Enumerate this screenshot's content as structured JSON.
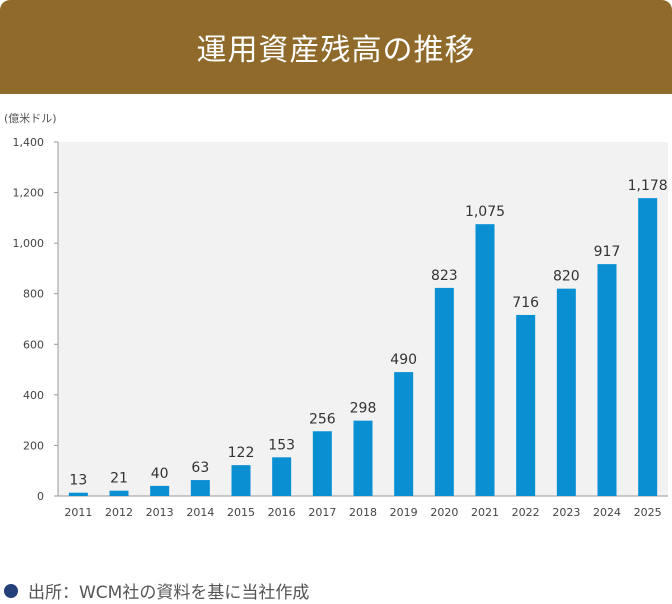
{
  "header": {
    "title": "運用資産残高の推移"
  },
  "colors": {
    "header_bg": "#8F6A2A",
    "bar": "#0A8FD3",
    "plot_bg": "#F2F2F2",
    "dot": "#24417A"
  },
  "chart_data": {
    "type": "bar",
    "ylabel": "(億米ドル)",
    "categories": [
      "2011",
      "2012",
      "2013",
      "2014",
      "2015",
      "2016",
      "2017",
      "2018",
      "2019",
      "2020",
      "2021",
      "2022",
      "2023",
      "2024",
      "2025"
    ],
    "values": [
      13,
      21,
      40,
      63,
      122,
      153,
      256,
      298,
      490,
      823,
      1075,
      716,
      820,
      917,
      1178
    ],
    "data_labels": [
      "13",
      "21",
      "40",
      "63",
      "122",
      "153",
      "256",
      "298",
      "490",
      "823",
      "1,075",
      "716",
      "820",
      "917",
      "1,178"
    ],
    "ylim": [
      0,
      1400
    ],
    "yticks": [
      0,
      200,
      400,
      600,
      800,
      1000,
      1200,
      1400
    ],
    "ytick_labels": [
      "0",
      "200",
      "400",
      "600",
      "800",
      "1,000",
      "1,200",
      "1,400"
    ],
    "grid": false,
    "legend": "none"
  },
  "source": {
    "text": "出所：WCM社の資料を基に当社作成"
  }
}
